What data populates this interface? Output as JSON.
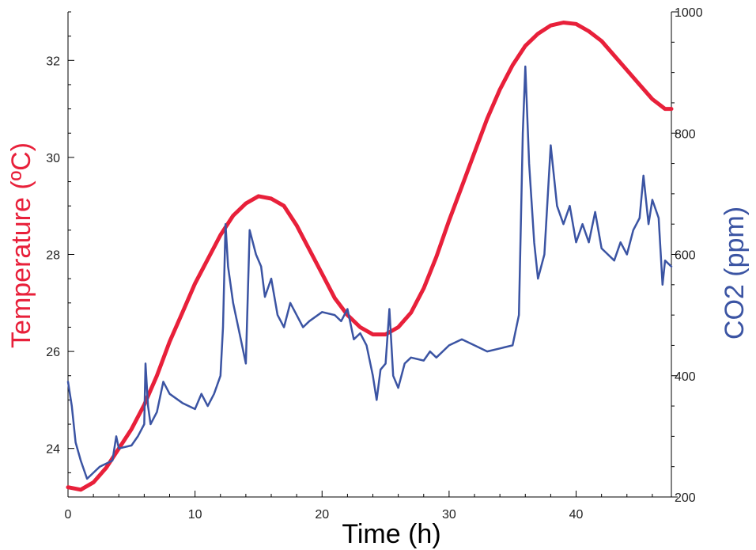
{
  "chart_data": {
    "type": "line",
    "xlabel": "Time (h)",
    "ylabel_left": "Temperature (ºC)",
    "ylabel_right": "CO2 (ppm)",
    "xlim": [
      0,
      47.5
    ],
    "ylim_left": [
      23,
      33
    ],
    "ylim_right": [
      200,
      1000
    ],
    "x_ticks": [
      0,
      10,
      20,
      30,
      40
    ],
    "y_left_ticks": [
      24,
      26,
      28,
      30,
      32
    ],
    "y_right_ticks": [
      200,
      400,
      600,
      800,
      1000
    ],
    "grid": false,
    "series": [
      {
        "axis": "left",
        "color": "#e8203a",
        "points": [
          [
            0,
            23.2
          ],
          [
            1,
            23.15
          ],
          [
            2,
            23.3
          ],
          [
            3,
            23.6
          ],
          [
            4,
            24.0
          ],
          [
            5,
            24.4
          ],
          [
            6,
            24.9
          ],
          [
            7,
            25.5
          ],
          [
            8,
            26.2
          ],
          [
            9,
            26.8
          ],
          [
            10,
            27.4
          ],
          [
            11,
            27.9
          ],
          [
            12,
            28.4
          ],
          [
            13,
            28.8
          ],
          [
            14,
            29.05
          ],
          [
            15,
            29.2
          ],
          [
            16,
            29.15
          ],
          [
            17,
            29.0
          ],
          [
            18,
            28.6
          ],
          [
            19,
            28.1
          ],
          [
            20,
            27.6
          ],
          [
            21,
            27.1
          ],
          [
            22,
            26.75
          ],
          [
            23,
            26.5
          ],
          [
            24,
            26.35
          ],
          [
            25,
            26.35
          ],
          [
            26,
            26.5
          ],
          [
            27,
            26.8
          ],
          [
            28,
            27.3
          ],
          [
            29,
            27.95
          ],
          [
            30,
            28.7
          ],
          [
            31,
            29.4
          ],
          [
            32,
            30.1
          ],
          [
            33,
            30.8
          ],
          [
            34,
            31.4
          ],
          [
            35,
            31.9
          ],
          [
            36,
            32.3
          ],
          [
            37,
            32.55
          ],
          [
            38,
            32.72
          ],
          [
            39,
            32.78
          ],
          [
            40,
            32.75
          ],
          [
            41,
            32.6
          ],
          [
            42,
            32.4
          ],
          [
            43,
            32.1
          ],
          [
            44,
            31.8
          ],
          [
            45,
            31.5
          ],
          [
            46,
            31.2
          ],
          [
            47,
            31.0
          ],
          [
            47.5,
            31.0
          ]
        ]
      },
      {
        "axis": "right",
        "color": "#3b54a3",
        "points": [
          [
            0,
            390
          ],
          [
            0.3,
            350
          ],
          [
            0.6,
            290
          ],
          [
            1,
            260
          ],
          [
            1.5,
            230
          ],
          [
            2,
            240
          ],
          [
            2.5,
            250
          ],
          [
            3,
            255
          ],
          [
            3.5,
            260
          ],
          [
            3.8,
            300
          ],
          [
            4,
            280
          ],
          [
            5,
            285
          ],
          [
            5.5,
            300
          ],
          [
            6,
            320
          ],
          [
            6.1,
            420
          ],
          [
            6.3,
            350
          ],
          [
            6.5,
            320
          ],
          [
            7,
            340
          ],
          [
            7.5,
            390
          ],
          [
            8,
            370
          ],
          [
            9,
            355
          ],
          [
            10,
            345
          ],
          [
            10.5,
            370
          ],
          [
            11,
            350
          ],
          [
            11.5,
            370
          ],
          [
            12,
            400
          ],
          [
            12.2,
            480
          ],
          [
            12.4,
            650
          ],
          [
            12.6,
            580
          ],
          [
            13,
            520
          ],
          [
            13.5,
            470
          ],
          [
            14,
            420
          ],
          [
            14.3,
            640
          ],
          [
            14.8,
            600
          ],
          [
            15.2,
            580
          ],
          [
            15.5,
            530
          ],
          [
            16,
            560
          ],
          [
            16.5,
            500
          ],
          [
            17,
            480
          ],
          [
            17.5,
            520
          ],
          [
            18,
            500
          ],
          [
            18.5,
            480
          ],
          [
            19,
            490
          ],
          [
            20,
            505
          ],
          [
            21,
            500
          ],
          [
            21.5,
            490
          ],
          [
            22,
            510
          ],
          [
            22.5,
            460
          ],
          [
            23,
            470
          ],
          [
            23.5,
            450
          ],
          [
            24,
            400
          ],
          [
            24.3,
            360
          ],
          [
            24.6,
            410
          ],
          [
            25,
            420
          ],
          [
            25.3,
            510
          ],
          [
            25.6,
            400
          ],
          [
            26,
            380
          ],
          [
            26.5,
            420
          ],
          [
            27,
            430
          ],
          [
            28,
            425
          ],
          [
            28.5,
            440
          ],
          [
            29,
            430
          ],
          [
            30,
            450
          ],
          [
            31,
            460
          ],
          [
            32,
            450
          ],
          [
            33,
            440
          ],
          [
            34,
            445
          ],
          [
            35,
            450
          ],
          [
            35.5,
            500
          ],
          [
            35.8,
            800
          ],
          [
            36,
            910
          ],
          [
            36.3,
            750
          ],
          [
            36.7,
            620
          ],
          [
            37,
            560
          ],
          [
            37.5,
            600
          ],
          [
            38,
            780
          ],
          [
            38.5,
            680
          ],
          [
            39,
            650
          ],
          [
            39.5,
            680
          ],
          [
            40,
            620
          ],
          [
            40.5,
            650
          ],
          [
            41,
            620
          ],
          [
            41.5,
            670
          ],
          [
            42,
            610
          ],
          [
            43,
            590
          ],
          [
            43.5,
            620
          ],
          [
            44,
            600
          ],
          [
            44.5,
            640
          ],
          [
            45,
            660
          ],
          [
            45.3,
            730
          ],
          [
            45.7,
            650
          ],
          [
            46,
            690
          ],
          [
            46.5,
            660
          ],
          [
            46.8,
            550
          ],
          [
            47,
            590
          ],
          [
            47.5,
            580
          ]
        ]
      }
    ]
  }
}
